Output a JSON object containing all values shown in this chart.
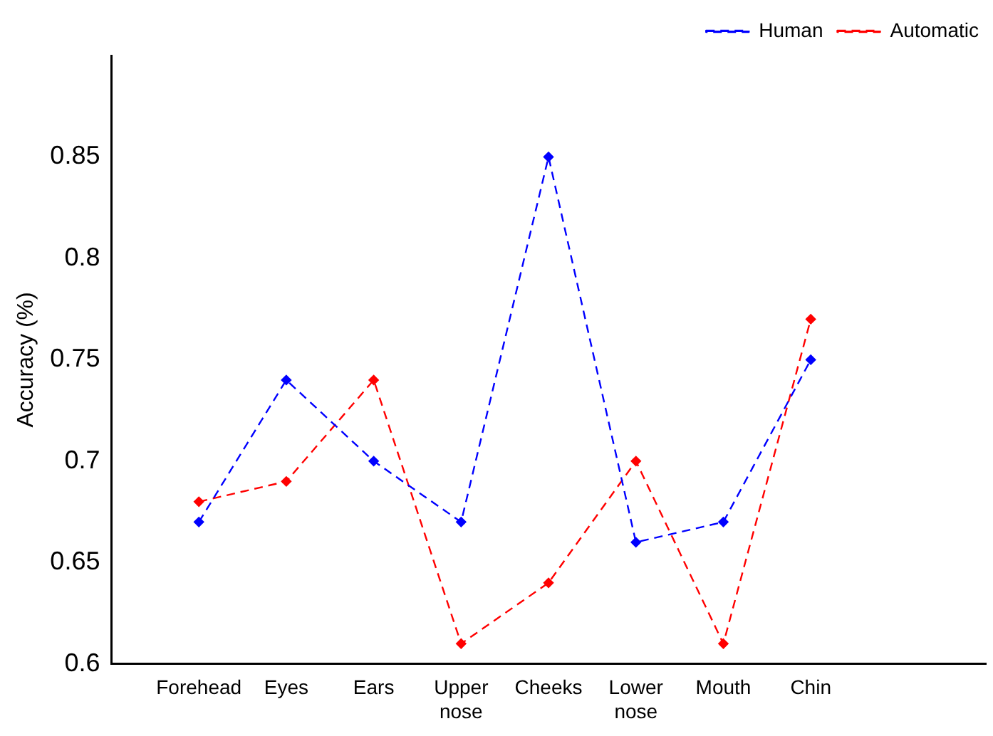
{
  "chart_data": {
    "type": "line",
    "ylabel": "Accuracy (%)",
    "categories": [
      "Forehead",
      "Eyes",
      "Ears",
      "Upper nose",
      "Cheeks",
      "Lower nose",
      "Mouth",
      "Chin"
    ],
    "series": [
      {
        "name": "Human",
        "color": "#0000ff",
        "line_style": "dashed",
        "values": [
          0.67,
          0.74,
          0.7,
          0.67,
          0.85,
          0.66,
          0.67,
          0.75
        ]
      },
      {
        "name": "Automatic",
        "color": "#ff0000",
        "line_style": "dashed",
        "values": [
          0.68,
          0.69,
          0.74,
          0.61,
          0.64,
          0.7,
          0.61,
          0.77
        ]
      }
    ],
    "ylim": [
      0.6,
      0.9
    ],
    "yticks": [
      0.6,
      0.65,
      0.7,
      0.75,
      0.8,
      0.85
    ],
    "grid": false,
    "legend": "top right",
    "marker": "diamond"
  }
}
